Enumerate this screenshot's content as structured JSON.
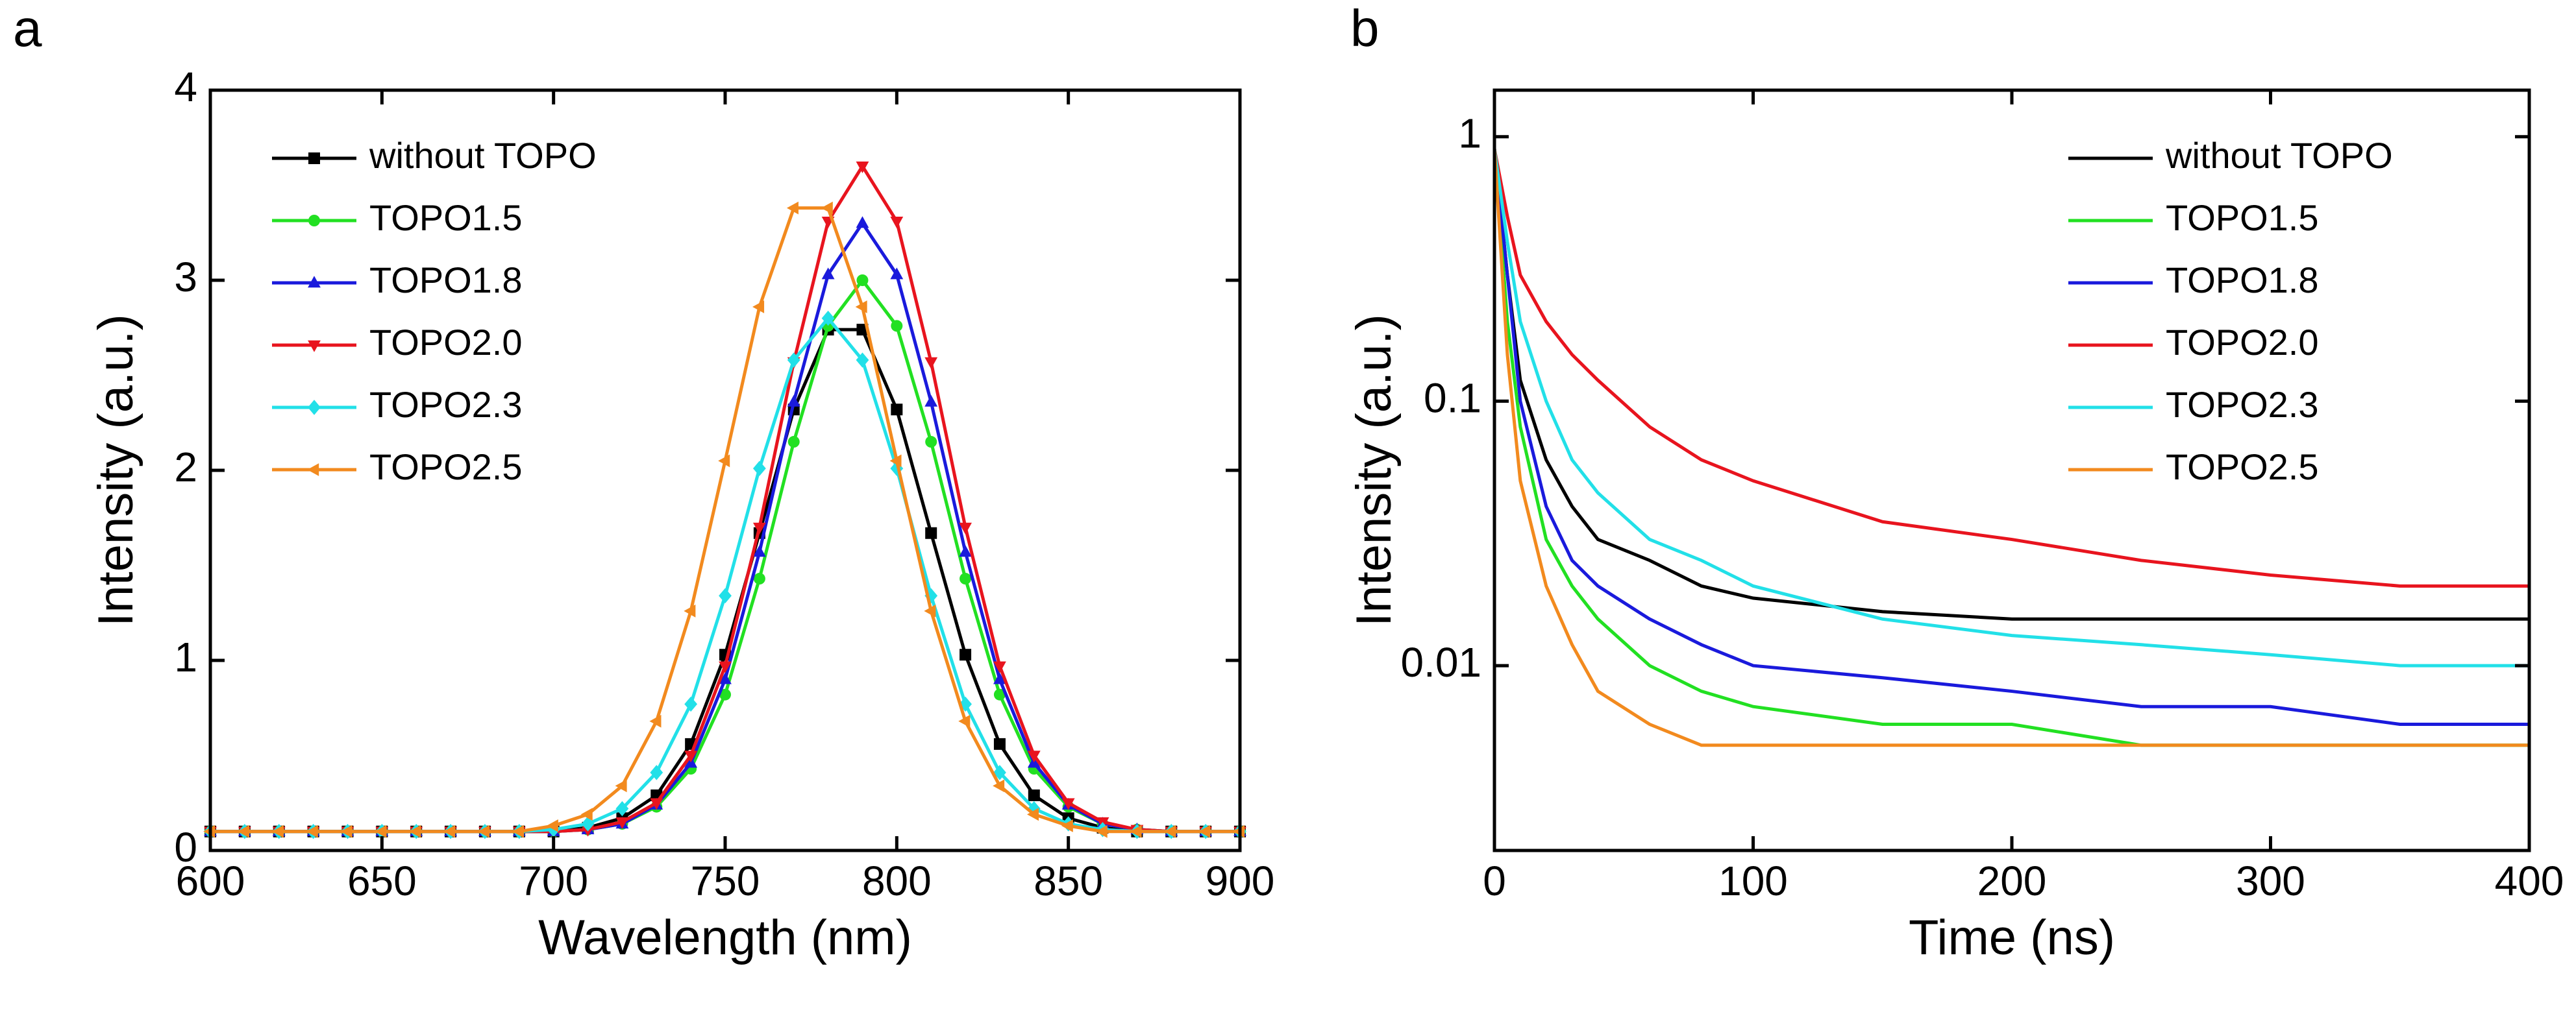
{
  "chart_data": [
    {
      "type": "line",
      "panel": "a",
      "xlabel": "Wavelength (nm)",
      "ylabel": "Intensity (a.u.)",
      "xlim": [
        600,
        900
      ],
      "xticks": [
        600,
        650,
        700,
        750,
        800,
        850,
        900
      ],
      "ylim": [
        0,
        4
      ],
      "yticks": [
        0,
        1,
        2,
        3,
        4
      ],
      "yscale": "linear",
      "legend": "upper left",
      "x": [
        600,
        610,
        620,
        630,
        640,
        650,
        660,
        670,
        680,
        690,
        700,
        710,
        720,
        730,
        740,
        750,
        760,
        770,
        780,
        790,
        800,
        810,
        820,
        830,
        840,
        850,
        860,
        870,
        880,
        890,
        900
      ],
      "series": [
        {
          "name": "without TOPO",
          "color": "#000000",
          "marker": "square",
          "values": [
            0.1,
            0.1,
            0.1,
            0.1,
            0.1,
            0.1,
            0.1,
            0.1,
            0.1,
            0.1,
            0.1,
            0.12,
            0.17,
            0.29,
            0.56,
            1.03,
            1.67,
            2.32,
            2.74,
            2.74,
            2.32,
            1.67,
            1.03,
            0.56,
            0.29,
            0.17,
            0.12,
            0.1,
            0.1,
            0.1,
            0.1
          ]
        },
        {
          "name": "TOPO1.5",
          "color": "#22e022",
          "marker": "circle",
          "values": [
            0.1,
            0.1,
            0.1,
            0.1,
            0.1,
            0.1,
            0.1,
            0.1,
            0.1,
            0.1,
            0.1,
            0.11,
            0.14,
            0.23,
            0.43,
            0.82,
            1.43,
            2.15,
            2.76,
            3.0,
            2.76,
            2.15,
            1.43,
            0.82,
            0.43,
            0.23,
            0.14,
            0.11,
            0.1,
            0.1,
            0.1
          ]
        },
        {
          "name": "TOPO1.8",
          "color": "#1a1adc",
          "marker": "triangle-up",
          "values": [
            0.1,
            0.1,
            0.1,
            0.1,
            0.1,
            0.1,
            0.1,
            0.1,
            0.1,
            0.1,
            0.1,
            0.11,
            0.14,
            0.24,
            0.46,
            0.9,
            1.57,
            2.36,
            3.03,
            3.3,
            3.03,
            2.36,
            1.57,
            0.9,
            0.46,
            0.24,
            0.14,
            0.11,
            0.1,
            0.1,
            0.1
          ]
        },
        {
          "name": "TOPO2.0",
          "color": "#e8141e",
          "marker": "triangle-down",
          "values": [
            0.1,
            0.1,
            0.1,
            0.1,
            0.1,
            0.1,
            0.1,
            0.1,
            0.1,
            0.1,
            0.1,
            0.11,
            0.15,
            0.25,
            0.5,
            0.97,
            1.7,
            2.57,
            3.31,
            3.6,
            3.31,
            2.57,
            1.7,
            0.97,
            0.5,
            0.25,
            0.15,
            0.11,
            0.1,
            0.1,
            0.1
          ]
        },
        {
          "name": "TOPO2.3",
          "color": "#22e0e8",
          "marker": "diamond",
          "values": [
            0.1,
            0.1,
            0.1,
            0.1,
            0.1,
            0.1,
            0.1,
            0.1,
            0.1,
            0.1,
            0.11,
            0.14,
            0.22,
            0.41,
            0.77,
            1.34,
            2.01,
            2.58,
            2.8,
            2.58,
            2.01,
            1.34,
            0.77,
            0.41,
            0.22,
            0.14,
            0.11,
            0.1,
            0.1,
            0.1,
            0.1
          ]
        },
        {
          "name": "TOPO2.5",
          "color": "#f28a1e",
          "marker": "triangle-left",
          "values": [
            0.1,
            0.1,
            0.1,
            0.1,
            0.1,
            0.1,
            0.1,
            0.1,
            0.1,
            0.1,
            0.13,
            0.19,
            0.34,
            0.68,
            1.26,
            2.05,
            2.86,
            3.38,
            3.38,
            2.86,
            2.05,
            1.26,
            0.68,
            0.34,
            0.19,
            0.13,
            0.1,
            0.1,
            0.1,
            0.1,
            0.1
          ]
        }
      ]
    },
    {
      "type": "line",
      "panel": "b",
      "xlabel": "Time (ns)",
      "ylabel": "Intensity (a.u.)",
      "xlim": [
        0,
        400
      ],
      "xticks": [
        0,
        100,
        200,
        300,
        400
      ],
      "ylim": [
        0.002,
        1.5
      ],
      "yticks": [
        0.01,
        0.1,
        1
      ],
      "yscale": "log",
      "legend": "upper right",
      "x": [
        0,
        5,
        10,
        20,
        30,
        40,
        60,
        80,
        100,
        150,
        200,
        250,
        300,
        350,
        400
      ],
      "series": [
        {
          "name": "without TOPO",
          "color": "#000000",
          "values": [
            0.9,
            0.3,
            0.12,
            0.06,
            0.04,
            0.03,
            0.025,
            0.02,
            0.018,
            0.016,
            0.015,
            0.015,
            0.015,
            0.015,
            0.015
          ]
        },
        {
          "name": "TOPO1.5",
          "color": "#22e022",
          "values": [
            0.9,
            0.2,
            0.08,
            0.03,
            0.02,
            0.015,
            0.01,
            0.008,
            0.007,
            0.006,
            0.006,
            0.005,
            0.005,
            0.005,
            0.005
          ]
        },
        {
          "name": "TOPO1.8",
          "color": "#1a1adc",
          "values": [
            0.9,
            0.3,
            0.1,
            0.04,
            0.025,
            0.02,
            0.015,
            0.012,
            0.01,
            0.009,
            0.008,
            0.007,
            0.007,
            0.006,
            0.006
          ]
        },
        {
          "name": "TOPO2.0",
          "color": "#e8141e",
          "values": [
            0.9,
            0.5,
            0.3,
            0.2,
            0.15,
            0.12,
            0.08,
            0.06,
            0.05,
            0.035,
            0.03,
            0.025,
            0.022,
            0.02,
            0.02
          ]
        },
        {
          "name": "TOPO2.3",
          "color": "#22e0e8",
          "values": [
            0.9,
            0.4,
            0.2,
            0.1,
            0.06,
            0.045,
            0.03,
            0.025,
            0.02,
            0.015,
            0.013,
            0.012,
            0.011,
            0.01,
            0.01
          ]
        },
        {
          "name": "TOPO2.5",
          "color": "#f28a1e",
          "values": [
            0.9,
            0.15,
            0.05,
            0.02,
            0.012,
            0.008,
            0.006,
            0.005,
            0.005,
            0.005,
            0.005,
            0.005,
            0.005,
            0.005,
            0.005
          ]
        }
      ]
    }
  ]
}
